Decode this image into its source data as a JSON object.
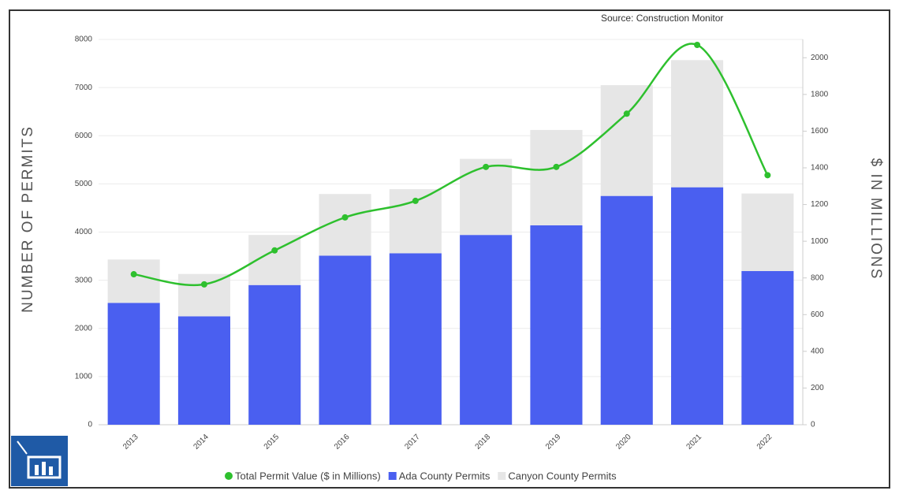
{
  "chart_data": {
    "type": "bar",
    "source": "Source: Construction Monitor",
    "ylabel": "NUMBER OF PERMITS",
    "y2label": "$ IN MILLIONS",
    "categories": [
      "2013",
      "2014",
      "2015",
      "2016",
      "2017",
      "2018",
      "2019",
      "2020",
      "2021",
      "2022"
    ],
    "series": [
      {
        "name": "Total Permit Value ($ in Millions)",
        "color": "#2ec02e",
        "type": "line",
        "axis": "y2",
        "values": [
          820,
          765,
          950,
          1130,
          1220,
          1405,
          1405,
          1695,
          2070,
          1360
        ]
      },
      {
        "name": "Ada County Permits",
        "color": "#4a5ff0",
        "type": "bar",
        "values": [
          2530,
          2250,
          2900,
          3510,
          3560,
          3940,
          4140,
          4750,
          4930,
          3190
        ]
      },
      {
        "name": "Canyon County Permits",
        "color": "#e6e6e6",
        "type": "bar",
        "values": [
          900,
          880,
          1040,
          1280,
          1330,
          1580,
          1980,
          2300,
          2640,
          1610
        ]
      }
    ],
    "ylim": [
      0,
      8000
    ],
    "yticks": [
      0,
      1000,
      2000,
      3000,
      4000,
      5000,
      6000,
      7000,
      8000
    ],
    "y2lim": [
      0,
      2100
    ],
    "y2ticks": [
      0,
      200,
      400,
      600,
      800,
      1000,
      1200,
      1400,
      1600,
      1800,
      2000
    ],
    "grid": true,
    "stacked": true,
    "legend": "bottom"
  }
}
